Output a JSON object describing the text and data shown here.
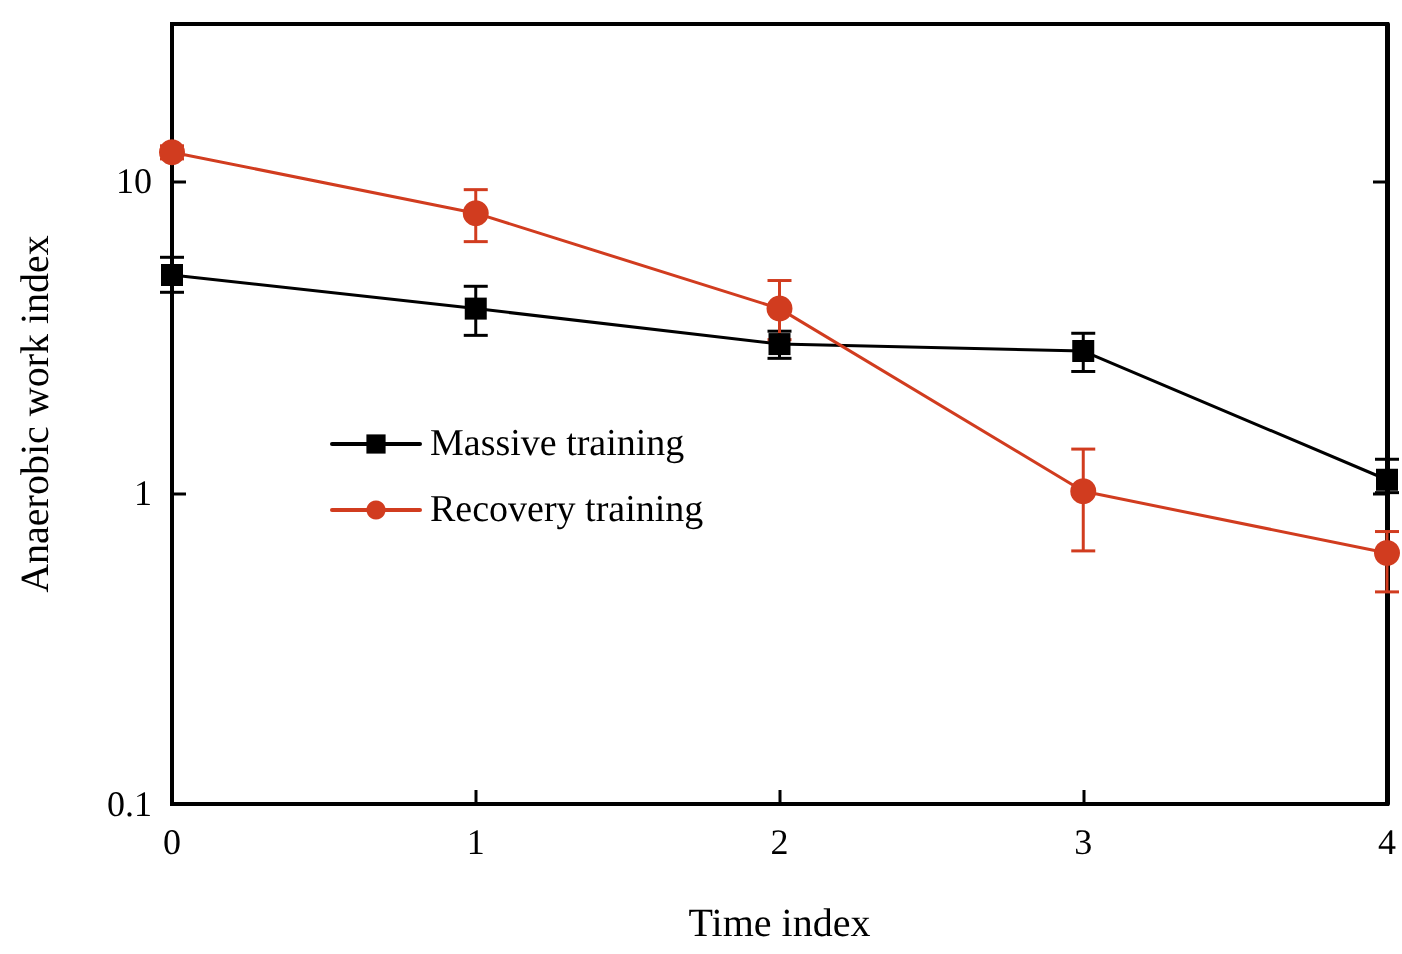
{
  "chart_data": {
    "type": "line",
    "xlabel": "Time index",
    "ylabel": "Anaerobic work index",
    "x": [
      0,
      1,
      2,
      3,
      4
    ],
    "series": [
      {
        "name": "Massive training",
        "color": "#000000",
        "marker": "square",
        "values": [
          5.0,
          3.9,
          3.0,
          2.85,
          1.1
        ],
        "errors": [
          [
            4.4,
            5.7
          ],
          [
            3.2,
            4.6
          ],
          [
            2.7,
            3.3
          ],
          [
            2.45,
            3.25
          ],
          [
            1.0,
            1.28
          ]
        ]
      },
      {
        "name": "Recovery training",
        "color": "#d13c1f",
        "marker": "circle",
        "values": [
          12.4,
          7.9,
          3.9,
          1.01,
          0.64
        ],
        "errors": [
          [
            11.8,
            13.0
          ],
          [
            6.4,
            9.4
          ],
          [
            3.1,
            4.8
          ],
          [
            0.65,
            1.38
          ],
          [
            0.48,
            0.75
          ]
        ]
      }
    ],
    "xlim": [
      0,
      4
    ],
    "xticks": [
      0,
      1,
      2,
      3,
      4
    ],
    "ylim": [
      0.1,
      32
    ],
    "yticks": [
      0.1,
      1,
      10
    ],
    "log": "y",
    "grid": false,
    "legend": "left",
    "line_style": "solid"
  }
}
